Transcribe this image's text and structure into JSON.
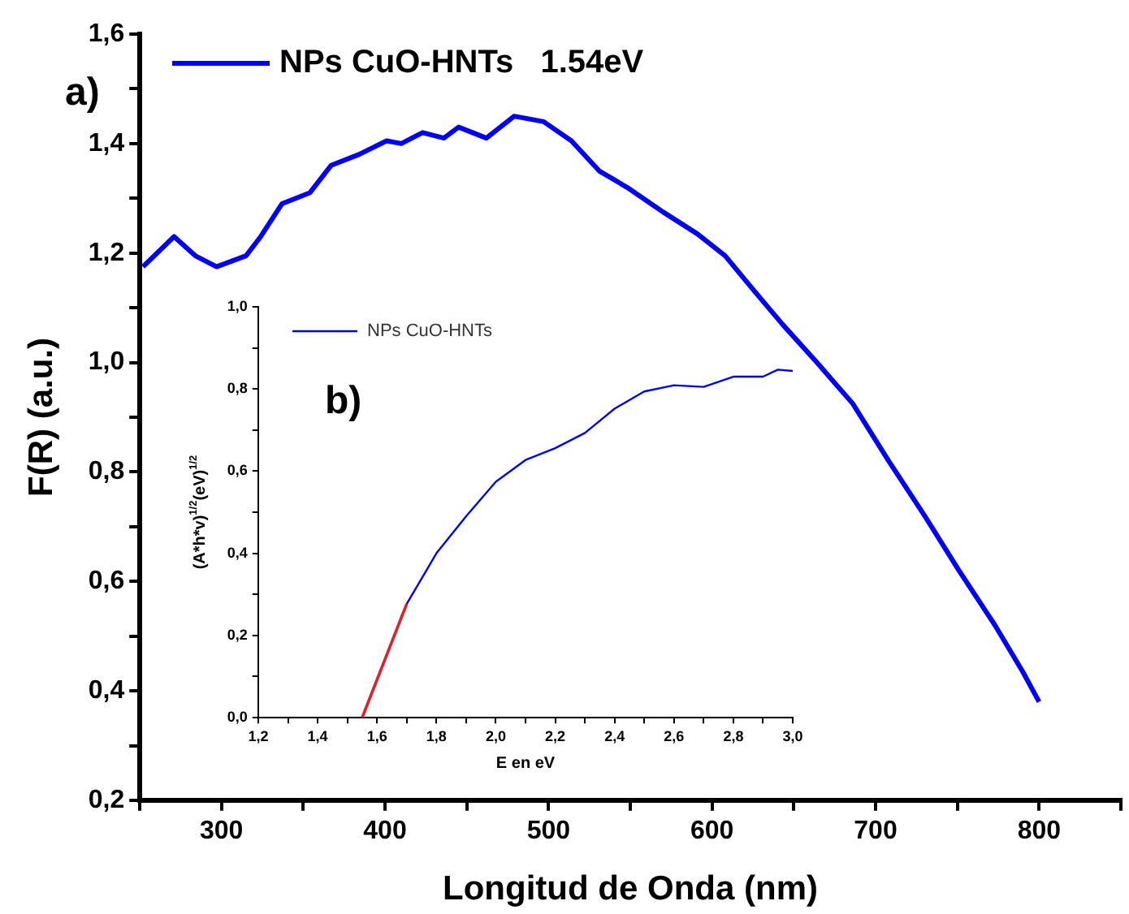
{
  "chart_data": [
    {
      "type": "line",
      "xlabel": "Longitud de Onda (nm)",
      "ylabel": "F(R) (a.u.)",
      "annotations": [
        "a)"
      ],
      "legend": "top left",
      "xlim": [
        250,
        850
      ],
      "ylim": [
        0.2,
        1.6
      ],
      "xticks": [
        {
          "value": 250,
          "label": null
        },
        300,
        {
          "value": 350,
          "label": null
        },
        400,
        {
          "value": 450,
          "label": null
        },
        500,
        {
          "value": 550,
          "label": null
        },
        600,
        {
          "value": 650,
          "label": null
        },
        700,
        {
          "value": 750,
          "label": null
        },
        800,
        {
          "value": 850,
          "label": null
        }
      ],
      "yticks": [
        {
          "value": 0.2,
          "label": "0,2"
        },
        {
          "value": 0.3,
          "label": null
        },
        {
          "value": 0.4,
          "label": "0,4"
        },
        {
          "value": 0.5,
          "label": null
        },
        {
          "value": 0.6,
          "label": "0,6"
        },
        {
          "value": 0.7,
          "label": null
        },
        {
          "value": 0.8,
          "label": "0,8"
        },
        {
          "value": 0.9,
          "label": null
        },
        {
          "value": 1.0,
          "label": "1,0"
        },
        {
          "value": 1.1,
          "label": null
        },
        {
          "value": 1.2,
          "label": "1,2"
        },
        {
          "value": 1.3,
          "label": null
        },
        {
          "value": 1.4,
          "label": "1,4"
        },
        {
          "value": 1.5,
          "label": null
        },
        {
          "value": 1.6,
          "label": "1,6"
        }
      ],
      "series": [
        {
          "name": "NPs CuO-HNTs   1.54eV",
          "color": "#0000ff",
          "x": [
            252,
            271,
            284,
            297,
            315,
            324,
            337,
            354,
            367,
            384,
            401,
            410,
            423,
            436,
            445,
            462,
            479,
            497,
            514,
            531,
            548,
            570,
            591,
            608,
            626,
            643,
            665,
            686,
            708,
            730,
            751,
            773,
            790,
            800
          ],
          "values": [
            1.175,
            1.23,
            1.195,
            1.175,
            1.195,
            1.23,
            1.29,
            1.31,
            1.36,
            1.38,
            1.405,
            1.4,
            1.42,
            1.41,
            1.43,
            1.41,
            1.45,
            1.44,
            1.405,
            1.35,
            1.32,
            1.275,
            1.235,
            1.195,
            1.13,
            1.07,
            0.997,
            0.925,
            0.82,
            0.72,
            0.62,
            0.52,
            0.435,
            0.38
          ]
        }
      ]
    },
    {
      "type": "line",
      "xlabel": "E en eV",
      "ylabel": "(A*h*v)$^{1/2}$(eV)$^{1/2}$",
      "annotations": [
        "b)"
      ],
      "legend": "top left",
      "xlim": [
        1.2,
        3.0
      ],
      "ylim": [
        0,
        1.0
      ],
      "xticks": [
        {
          "value": 1.2,
          "label": "1,2"
        },
        {
          "value": 1.3,
          "label": null
        },
        {
          "value": 1.4,
          "label": "1,4"
        },
        {
          "value": 1.5,
          "label": null
        },
        {
          "value": 1.6,
          "label": "1,6"
        },
        {
          "value": 1.7,
          "label": null
        },
        {
          "value": 1.8,
          "label": "1,8"
        },
        {
          "value": 1.9,
          "label": null
        },
        {
          "value": 2.0,
          "label": "2,0"
        },
        {
          "value": 2.1,
          "label": null
        },
        {
          "value": 2.2,
          "label": "2,2"
        },
        {
          "value": 2.3,
          "label": null
        },
        {
          "value": 2.4,
          "label": "2,4"
        },
        {
          "value": 2.5,
          "label": null
        },
        {
          "value": 2.6,
          "label": "2,6"
        },
        {
          "value": 2.7,
          "label": null
        },
        {
          "value": 2.8,
          "label": "2,8"
        },
        {
          "value": 2.9,
          "label": null
        },
        {
          "value": 3.0,
          "label": "3,0"
        }
      ],
      "yticks": [
        {
          "value": 0,
          "label": "0,0"
        },
        {
          "value": 0.1,
          "label": null
        },
        {
          "value": 0.2,
          "label": "0,2"
        },
        {
          "value": 0.3,
          "label": null
        },
        {
          "value": 0.4,
          "label": "0,4"
        },
        {
          "value": 0.5,
          "label": null
        },
        {
          "value": 0.6,
          "label": "0,6"
        },
        {
          "value": 0.7,
          "label": null
        },
        {
          "value": 0.8,
          "label": "0,8"
        },
        {
          "value": 0.9,
          "label": null
        },
        {
          "value": 1.0,
          "label": "1,0"
        }
      ],
      "series": [
        {
          "name": "NPs CuO-HNTs",
          "color": "#0000ff",
          "x": [
            1.55,
            1.7,
            1.8,
            1.9,
            2.0,
            2.1,
            2.2,
            2.3,
            2.4,
            2.5,
            2.6,
            2.7,
            2.8,
            2.9,
            2.95,
            3.0
          ],
          "values": [
            0,
            0.277,
            0.4,
            0.49,
            0.574,
            0.627,
            0.656,
            0.693,
            0.752,
            0.794,
            0.809,
            0.805,
            0.83,
            0.83,
            0.847,
            0.844
          ]
        },
        {
          "type": "line",
          "color": "#e0202a",
          "x": [
            1.55,
            1.7
          ],
          "values": [
            0,
            0.277
          ]
        }
      ]
    }
  ]
}
